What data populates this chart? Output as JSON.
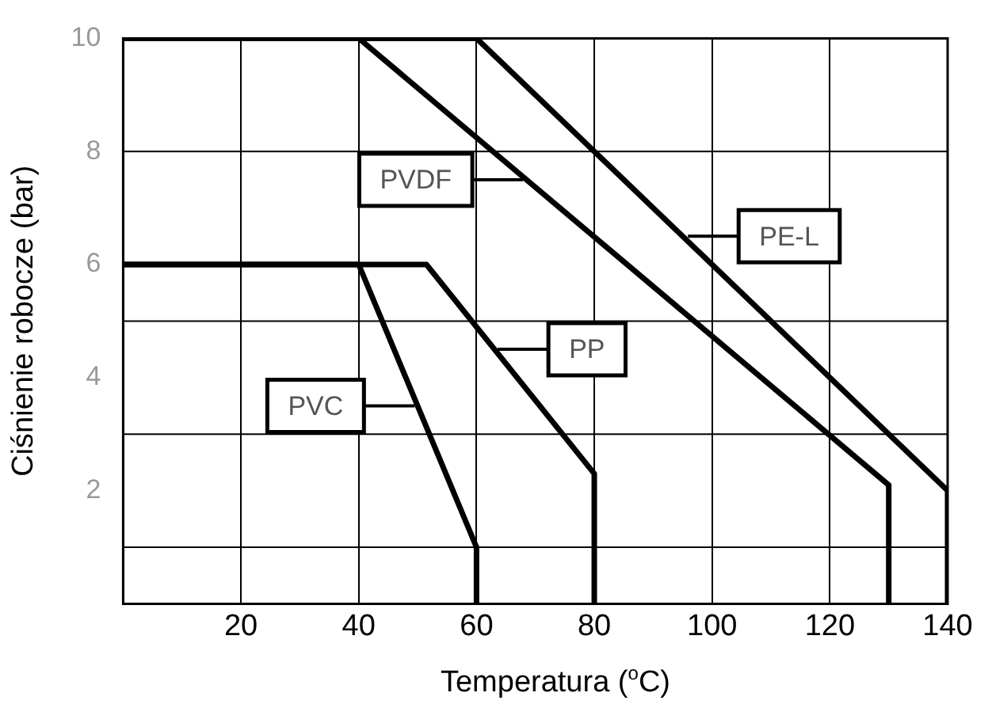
{
  "chart_data": {
    "type": "line",
    "xlabel": "Temperatura ($^{o}$C)",
    "ylabel": "Ciśnienie robocze (bar)",
    "xlim": [
      0,
      140
    ],
    "xticks": [
      20,
      40,
      60,
      80,
      100,
      120,
      140
    ],
    "ylim": [
      0,
      10
    ],
    "yticks": [
      2,
      4,
      6,
      8,
      10
    ],
    "grid": "x",
    "marker": "none",
    "line_style": "solid",
    "legend": false,
    "ref_lines": [
      {
        "axis": "y",
        "value": 8,
        "color": "#000000"
      },
      {
        "axis": "y",
        "value": 5,
        "color": "#000000"
      },
      {
        "axis": "y",
        "value": 3,
        "color": "#000000"
      },
      {
        "axis": "y",
        "value": 1,
        "color": "#000000"
      }
    ],
    "series": [
      {
        "color": "#000000",
        "x": [
          0,
          40,
          60,
          60
        ],
        "values": [
          6,
          6,
          1,
          0
        ]
      },
      {
        "color": "#000000",
        "x": [
          0,
          51.5,
          80,
          80
        ],
        "values": [
          6,
          6,
          2.3,
          0
        ]
      },
      {
        "color": "#000000",
        "x": [
          0,
          40,
          130,
          130
        ],
        "values": [
          10,
          10,
          2.1,
          0
        ]
      },
      {
        "color": "#000000",
        "x": [
          0,
          60,
          140,
          140
        ],
        "values": [
          10,
          10,
          2,
          0
        ]
      }
    ],
    "annotations": [
      {
        "text": "PVDF",
        "x": 67.9,
        "y": 7.5
      },
      {
        "text": "PE-L",
        "x": 95.9,
        "y": 6.5
      },
      {
        "text": "PP",
        "x": 63.6,
        "y": 4.5
      },
      {
        "text": "PVC",
        "x": 49.5,
        "y": 3.5
      }
    ]
  }
}
